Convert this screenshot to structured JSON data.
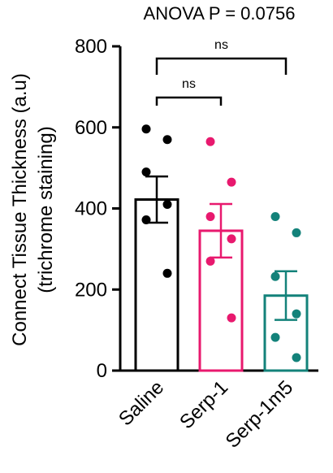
{
  "chart_data": {
    "type": "bar",
    "title": "ANOVA P = 0.0756",
    "ylabel_line1": "Connect Tissue Thickness (a.u)",
    "ylabel_line2": "(trichrome staining)",
    "xlabel": "",
    "ylim": [
      0,
      800
    ],
    "yticks": [
      0,
      200,
      400,
      600,
      800
    ],
    "categories": [
      "Saline",
      "Serp-1",
      "Serp-1m5"
    ],
    "colors": [
      "#000000",
      "#e8196e",
      "#13827a"
    ],
    "means": [
      422,
      345,
      185
    ],
    "sem": [
      57,
      66,
      60
    ],
    "points": [
      [
        596,
        570,
        490,
        410,
        372,
        240
      ],
      [
        565,
        465,
        380,
        325,
        270,
        130
      ],
      [
        380,
        340,
        232,
        140,
        82,
        32
      ]
    ],
    "comparisons": [
      {
        "from": "Saline",
        "to": "Serp-1",
        "label": "ns"
      },
      {
        "from": "Saline",
        "to": "Serp-1m5",
        "label": "ns"
      }
    ]
  }
}
